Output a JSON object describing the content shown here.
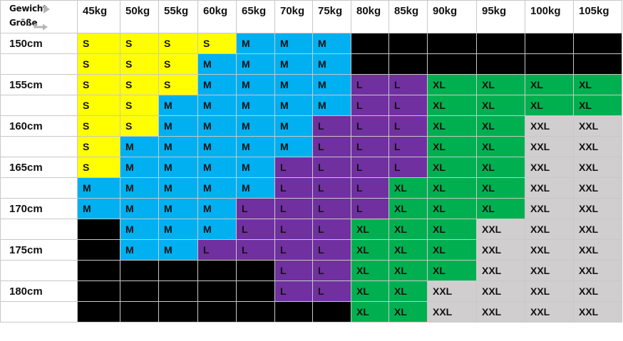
{
  "header": {
    "weight_label": "Gewicht",
    "height_label": "Größe",
    "weights": [
      "45kg",
      "50kg",
      "55kg",
      "60kg",
      "65kg",
      "70kg",
      "75kg",
      "80kg",
      "85kg",
      "90kg",
      "95kg",
      "100kg",
      "105kg"
    ]
  },
  "size_colors": {
    "S": "#ffff00",
    "M": "#00b0f0",
    "L": "#7030a0",
    "XL": "#00b050",
    "XXL": "#d0cece",
    "none": "#000000"
  },
  "rows": [
    {
      "height": "150cm",
      "sizes": [
        "S",
        "S",
        "S",
        "S",
        "M",
        "M",
        "M",
        "",
        "",
        "",
        "",
        "",
        ""
      ]
    },
    {
      "height": "",
      "sizes": [
        "S",
        "S",
        "S",
        "M",
        "M",
        "M",
        "M",
        "",
        "",
        "",
        "",
        "",
        ""
      ]
    },
    {
      "height": "155cm",
      "sizes": [
        "S",
        "S",
        "S",
        "M",
        "M",
        "M",
        "M",
        "L",
        "L",
        "XL",
        "XL",
        "XL",
        "XL"
      ]
    },
    {
      "height": "",
      "sizes": [
        "S",
        "S",
        "M",
        "M",
        "M",
        "M",
        "M",
        "L",
        "L",
        "XL",
        "XL",
        "XL",
        "XL"
      ]
    },
    {
      "height": "160cm",
      "sizes": [
        "S",
        "S",
        "M",
        "M",
        "M",
        "M",
        "L",
        "L",
        "L",
        "XL",
        "XL",
        "XXL",
        "XXL"
      ]
    },
    {
      "height": "",
      "sizes": [
        "S",
        "M",
        "M",
        "M",
        "M",
        "M",
        "L",
        "L",
        "L",
        "XL",
        "XL",
        "XXL",
        "XXL"
      ]
    },
    {
      "height": "165cm",
      "sizes": [
        "S",
        "M",
        "M",
        "M",
        "M",
        "L",
        "L",
        "L",
        "L",
        "XL",
        "XL",
        "XXL",
        "XXL"
      ]
    },
    {
      "height": "",
      "sizes": [
        "M",
        "M",
        "M",
        "M",
        "M",
        "L",
        "L",
        "L",
        "XL",
        "XL",
        "XL",
        "XXL",
        "XXL"
      ]
    },
    {
      "height": "170cm",
      "sizes": [
        "M",
        "M",
        "M",
        "M",
        "L",
        "L",
        "L",
        "L",
        "XL",
        "XL",
        "XL",
        "XXL",
        "XXL"
      ]
    },
    {
      "height": "",
      "sizes": [
        "",
        "M",
        "M",
        "M",
        "L",
        "L",
        "L",
        "XL",
        "XL",
        "XL",
        "XXL",
        "XXL",
        "XXL"
      ]
    },
    {
      "height": "175cm",
      "sizes": [
        "",
        "M",
        "M",
        "L",
        "L",
        "L",
        "L",
        "XL",
        "XL",
        "XL",
        "XXL",
        "XXL",
        "XXL"
      ]
    },
    {
      "height": "",
      "sizes": [
        "",
        "",
        "",
        "",
        "",
        "L",
        "L",
        "XL",
        "XL",
        "XL",
        "XXL",
        "XXL",
        "XXL"
      ]
    },
    {
      "height": "180cm",
      "sizes": [
        "",
        "",
        "",
        "",
        "",
        "L",
        "L",
        "XL",
        "XL",
        "XXL",
        "XXL",
        "XXL",
        "XXL"
      ]
    },
    {
      "height": "",
      "sizes": [
        "",
        "",
        "",
        "",
        "",
        "",
        "",
        "XL",
        "XL",
        "XXL",
        "XXL",
        "XXL",
        "XXL"
      ]
    }
  ]
}
